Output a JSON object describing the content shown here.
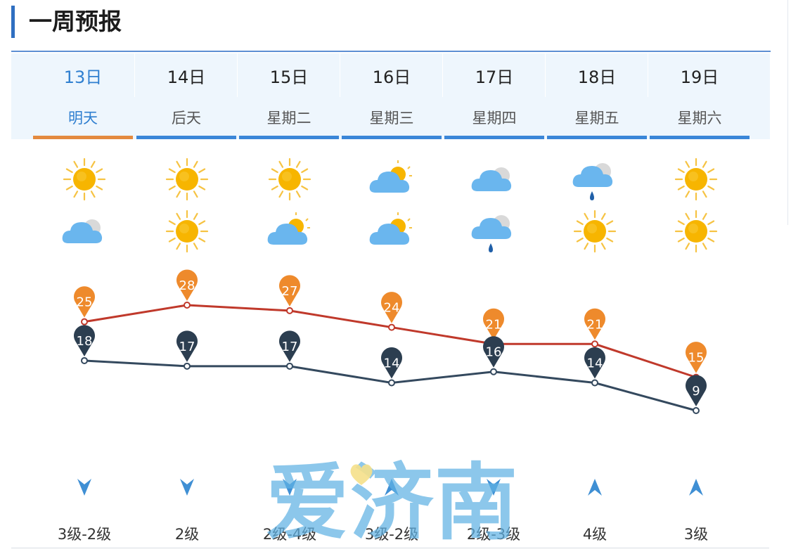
{
  "header": {
    "title": "一周预报"
  },
  "days": [
    {
      "date": "13日",
      "weekday": "明天",
      "active": true,
      "day_icon": "sun-icon",
      "night_icon": "cloudy-icon",
      "wind_direction": "down",
      "wind_level": "3级-2级"
    },
    {
      "date": "14日",
      "weekday": "后天",
      "active": false,
      "day_icon": "sun-icon",
      "night_icon": "sun-icon",
      "wind_direction": "down",
      "wind_level": "2级"
    },
    {
      "date": "15日",
      "weekday": "星期二",
      "active": false,
      "day_icon": "sun-icon",
      "night_icon": "partly-cloudy-icon",
      "wind_direction": "down",
      "wind_level": "2级-4级"
    },
    {
      "date": "16日",
      "weekday": "星期三",
      "active": false,
      "day_icon": "partly-cloudy-icon",
      "night_icon": "partly-cloudy-icon",
      "wind_direction": "up",
      "wind_level": "3级-2级"
    },
    {
      "date": "17日",
      "weekday": "星期四",
      "active": false,
      "day_icon": "cloudy-icon",
      "night_icon": "rain-icon",
      "wind_direction": "down",
      "wind_level": "2级-3级"
    },
    {
      "date": "18日",
      "weekday": "星期五",
      "active": false,
      "day_icon": "rain-icon",
      "night_icon": "sun-icon",
      "wind_direction": "up",
      "wind_level": "4级"
    },
    {
      "date": "19日",
      "weekday": "星期六",
      "active": false,
      "day_icon": "sun-icon",
      "night_icon": "sun-icon",
      "wind_direction": "up",
      "wind_level": "3级"
    }
  ],
  "chart_data": {
    "type": "line",
    "categories": [
      "13日",
      "14日",
      "15日",
      "16日",
      "17日",
      "18日",
      "19日"
    ],
    "series": [
      {
        "values": [
          25,
          28,
          27,
          24,
          21,
          21,
          15
        ],
        "color": "#c0392b",
        "marker_color": "#ee8a2c"
      },
      {
        "values": [
          18,
          17,
          17,
          14,
          16,
          14,
          9
        ],
        "color": "#34495e",
        "marker_color": "#2c3e50"
      }
    ],
    "ylim": [
      9,
      28
    ],
    "grid": false,
    "legend": "none"
  },
  "watermark": {
    "text": "爱济南",
    "color": "#60b1e3"
  },
  "colors": {
    "accent": "#2f6fc1",
    "active_tab": "#e38a3f",
    "tab_underline": "#3a86d8",
    "header_bg": "#eef6fd"
  }
}
